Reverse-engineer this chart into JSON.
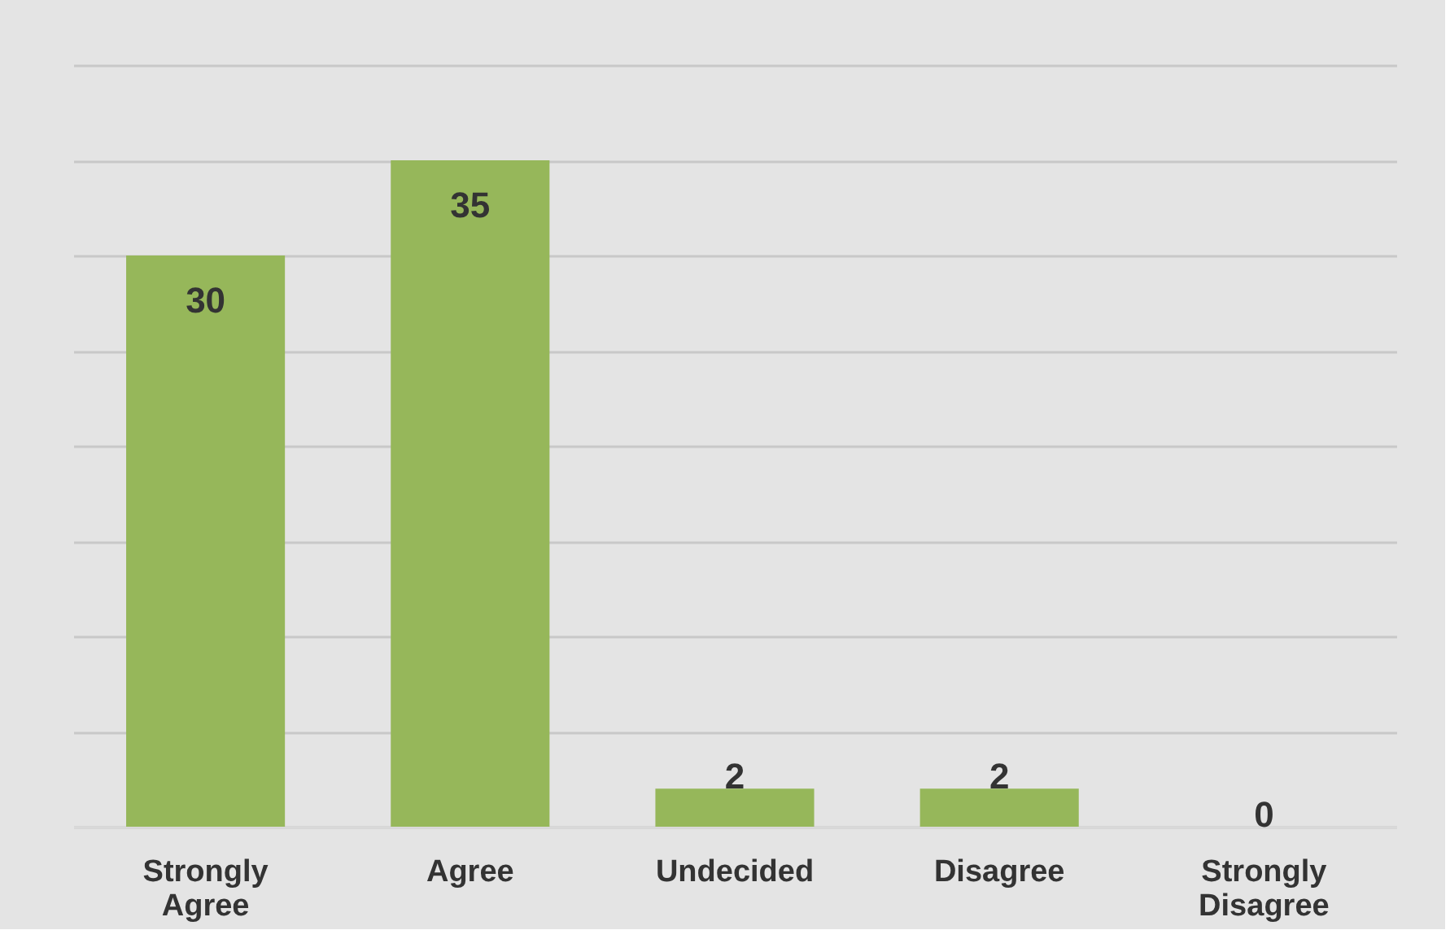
{
  "chart_data": {
    "type": "bar",
    "categories": [
      "Strongly Agree",
      "Agree",
      "Undecided",
      "Disagree",
      "Strongly Disagree"
    ],
    "values": [
      30,
      35,
      2,
      2,
      0
    ],
    "color": "#96b75a",
    "data_labels": true,
    "ylim": [
      0,
      40
    ],
    "yticks": [
      {
        "value": 0,
        "label": null
      },
      {
        "value": 5,
        "label": null
      },
      {
        "value": 10,
        "label": null
      },
      {
        "value": 15,
        "label": null
      },
      {
        "value": 20,
        "label": null
      },
      {
        "value": 25,
        "label": null
      },
      {
        "value": 30,
        "label": null
      },
      {
        "value": 35,
        "label": null
      },
      {
        "value": 40,
        "label": null
      }
    ],
    "grid": "y",
    "tick_labels": "x"
  }
}
